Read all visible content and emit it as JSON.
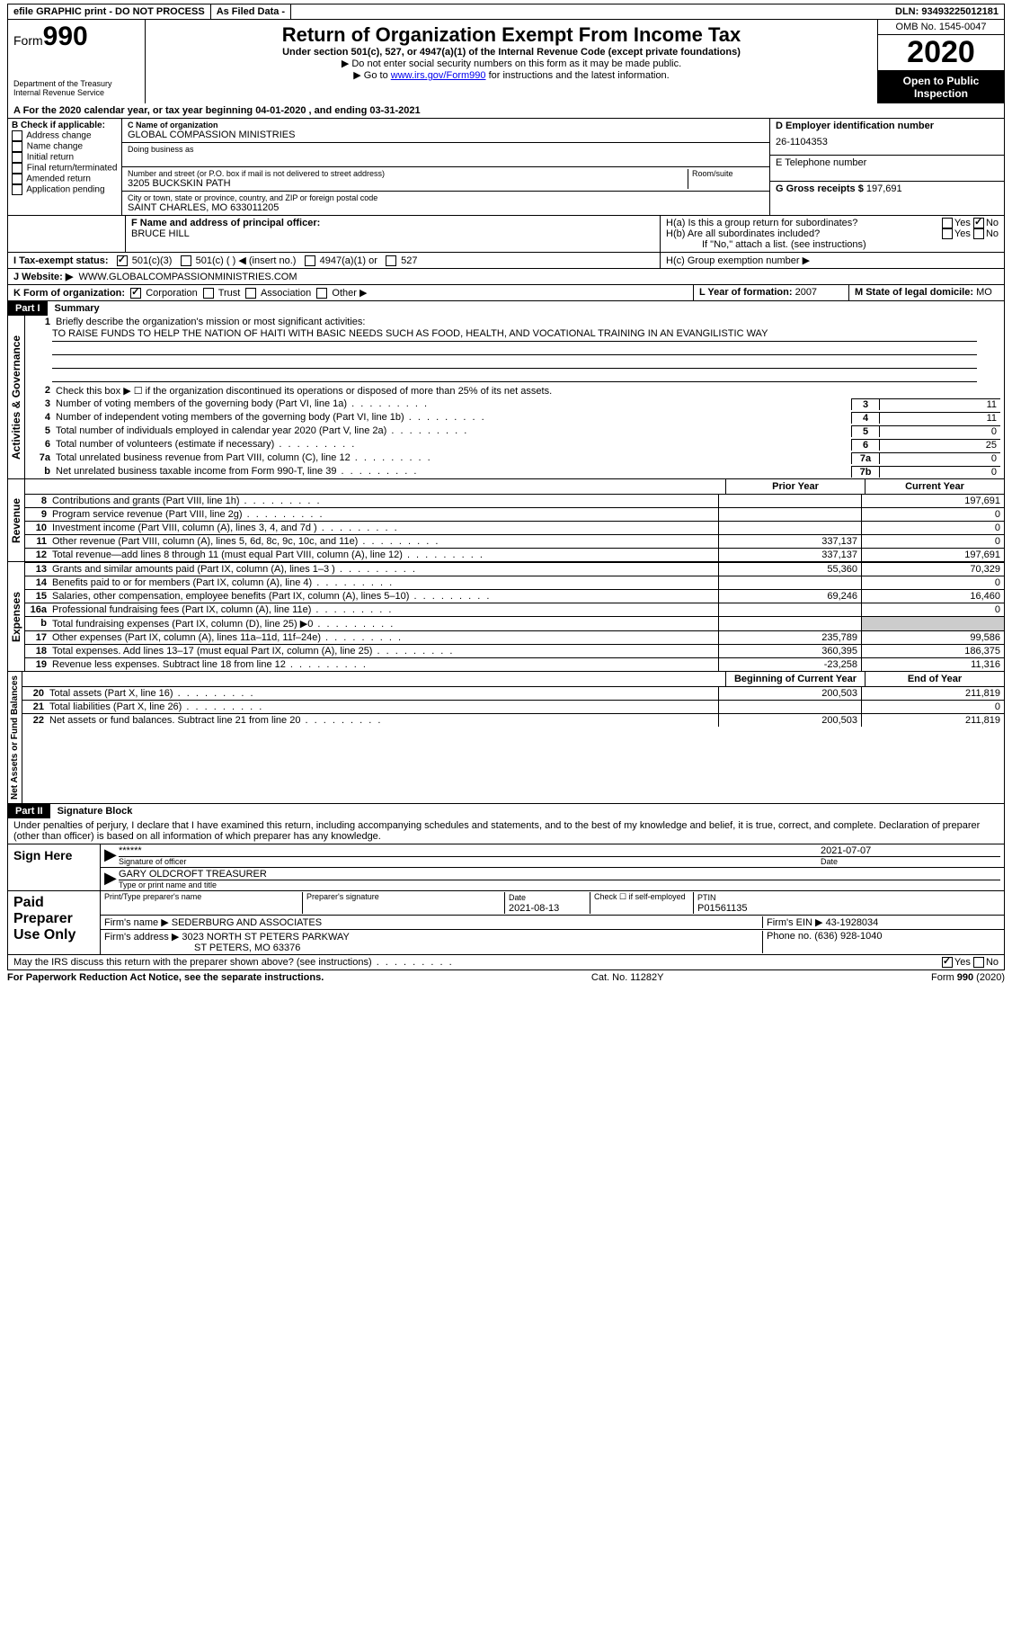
{
  "top": {
    "efile": "efile GRAPHIC print - DO NOT PROCESS",
    "asfiled": "As Filed Data -",
    "dln": "DLN: 93493225012181"
  },
  "header": {
    "form_prefix": "Form",
    "form_num": "990",
    "dept1": "Department of the Treasury",
    "dept2": "Internal Revenue Service",
    "title": "Return of Organization Exempt From Income Tax",
    "subtitle": "Under section 501(c), 527, or 4947(a)(1) of the Internal Revenue Code (except private foundations)",
    "note1": "▶ Do not enter social security numbers on this form as it may be made public.",
    "note2_pre": "▶ Go to ",
    "note2_link": "www.irs.gov/Form990",
    "note2_post": " for instructions and the latest information.",
    "omb": "OMB No. 1545-0047",
    "year": "2020",
    "open": "Open to Public Inspection"
  },
  "rowA": "A   For the 2020 calendar year, or tax year beginning 04-01-2020   , and ending 03-31-2021",
  "B": {
    "label": "B Check if applicable:",
    "items": [
      "Address change",
      "Name change",
      "Initial return",
      "Final return/terminated",
      "Amended return",
      "Application pending"
    ]
  },
  "C": {
    "label": "C Name of organization",
    "name": "GLOBAL COMPASSION MINISTRIES",
    "dba_label": "Doing business as",
    "addr_label": "Number and street (or P.O. box if mail is not delivered to street address)",
    "room_label": "Room/suite",
    "addr": "3205 BUCKSKIN PATH",
    "city_label": "City or town, state or province, country, and ZIP or foreign postal code",
    "city": "SAINT CHARLES, MO  633011205"
  },
  "D": {
    "label": "D Employer identification number",
    "val": "26-1104353"
  },
  "E": {
    "label": "E Telephone number"
  },
  "G": {
    "label": "G Gross receipts $",
    "val": "197,691"
  },
  "F": {
    "label": "F  Name and address of principal officer:",
    "name": "BRUCE HILL"
  },
  "H": {
    "a": "H(a)  Is this a group return for subordinates?",
    "b": "H(b)  Are all subordinates included?",
    "bnote": "If \"No,\" attach a list. (see instructions)",
    "c": "H(c)  Group exemption number ▶"
  },
  "I": {
    "label": "I   Tax-exempt status:",
    "o501c3": "501(c)(3)",
    "o501c": "501(c) (   ) ◀ (insert no.)",
    "o4947": "4947(a)(1) or",
    "o527": "527"
  },
  "J": {
    "label": "J   Website: ▶",
    "val": "WWW.GLOBALCOMPASSIONMINISTRIES.COM"
  },
  "K": {
    "label": "K Form of organization:",
    "corp": "Corporation",
    "trust": "Trust",
    "assoc": "Association",
    "other": "Other ▶"
  },
  "L": {
    "label": "L Year of formation:",
    "val": "2007"
  },
  "M": {
    "label": "M State of legal domicile:",
    "val": "MO"
  },
  "part1": {
    "num": "Part I",
    "title": "Summary"
  },
  "gov": {
    "label": "Activities & Governance",
    "l1": "Briefly describe the organization's mission or most significant activities:",
    "mission": "TO RAISE FUNDS TO HELP THE NATION OF HAITI WITH BASIC NEEDS SUCH AS FOOD, HEALTH, AND VOCATIONAL TRAINING IN AN EVANGILISTIC WAY",
    "l2": "Check this box ▶ ☐  if the organization discontinued its operations or disposed of more than 25% of its net assets.",
    "lines": [
      {
        "n": "3",
        "t": "Number of voting members of the governing body (Part VI, line 1a)",
        "box": "3",
        "v": "11"
      },
      {
        "n": "4",
        "t": "Number of independent voting members of the governing body (Part VI, line 1b)",
        "box": "4",
        "v": "11"
      },
      {
        "n": "5",
        "t": "Total number of individuals employed in calendar year 2020 (Part V, line 2a)",
        "box": "5",
        "v": "0"
      },
      {
        "n": "6",
        "t": "Total number of volunteers (estimate if necessary)",
        "box": "6",
        "v": "25"
      },
      {
        "n": "7a",
        "t": "Total unrelated business revenue from Part VIII, column (C), line 12",
        "box": "7a",
        "v": "0"
      },
      {
        "n": "b",
        "t": "Net unrelated business taxable income from Form 990-T, line 39",
        "box": "7b",
        "v": "0"
      }
    ]
  },
  "colhead": {
    "prior": "Prior Year",
    "curr": "Current Year"
  },
  "rev": {
    "label": "Revenue",
    "lines": [
      {
        "n": "8",
        "t": "Contributions and grants (Part VIII, line 1h)",
        "p": "",
        "c": "197,691"
      },
      {
        "n": "9",
        "t": "Program service revenue (Part VIII, line 2g)",
        "p": "",
        "c": "0"
      },
      {
        "n": "10",
        "t": "Investment income (Part VIII, column (A), lines 3, 4, and 7d )",
        "p": "",
        "c": "0"
      },
      {
        "n": "11",
        "t": "Other revenue (Part VIII, column (A), lines 5, 6d, 8c, 9c, 10c, and 11e)",
        "p": "337,137",
        "c": "0"
      },
      {
        "n": "12",
        "t": "Total revenue—add lines 8 through 11 (must equal Part VIII, column (A), line 12)",
        "p": "337,137",
        "c": "197,691"
      }
    ]
  },
  "exp": {
    "label": "Expenses",
    "lines": [
      {
        "n": "13",
        "t": "Grants and similar amounts paid (Part IX, column (A), lines 1–3 )",
        "p": "55,360",
        "c": "70,329"
      },
      {
        "n": "14",
        "t": "Benefits paid to or for members (Part IX, column (A), line 4)",
        "p": "",
        "c": "0"
      },
      {
        "n": "15",
        "t": "Salaries, other compensation, employee benefits (Part IX, column (A), lines 5–10)",
        "p": "69,246",
        "c": "16,460"
      },
      {
        "n": "16a",
        "t": "Professional fundraising fees (Part IX, column (A), line 11e)",
        "p": "",
        "c": "0"
      },
      {
        "n": "b",
        "t": "Total fundraising expenses (Part IX, column (D), line 25) ▶0",
        "p": "",
        "c": ""
      },
      {
        "n": "17",
        "t": "Other expenses (Part IX, column (A), lines 11a–11d, 11f–24e)",
        "p": "235,789",
        "c": "99,586"
      },
      {
        "n": "18",
        "t": "Total expenses. Add lines 13–17 (must equal Part IX, column (A), line 25)",
        "p": "360,395",
        "c": "186,375"
      },
      {
        "n": "19",
        "t": "Revenue less expenses. Subtract line 18 from line 12",
        "p": "-23,258",
        "c": "11,316"
      }
    ]
  },
  "na": {
    "label": "Net Assets or Fund Balances",
    "head_p": "Beginning of Current Year",
    "head_c": "End of Year",
    "lines": [
      {
        "n": "20",
        "t": "Total assets (Part X, line 16)",
        "p": "200,503",
        "c": "211,819"
      },
      {
        "n": "21",
        "t": "Total liabilities (Part X, line 26)",
        "p": "",
        "c": "0"
      },
      {
        "n": "22",
        "t": "Net assets or fund balances. Subtract line 21 from line 20",
        "p": "200,503",
        "c": "211,819"
      }
    ]
  },
  "part2": {
    "num": "Part II",
    "title": "Signature Block"
  },
  "perjury": "Under penalties of perjury, I declare that I have examined this return, including accompanying schedules and statements, and to the best of my knowledge and belief, it is true, correct, and complete. Declaration of preparer (other than officer) is based on all information of which preparer has any knowledge.",
  "sign": {
    "label": "Sign Here",
    "stars": "******",
    "sig_label": "Signature of officer",
    "date": "2021-07-07",
    "date_label": "Date",
    "name": "GARY OLDCROFT TREASURER",
    "name_label": "Type or print name and title"
  },
  "prep": {
    "label": "Paid Preparer Use Only",
    "h1": "Print/Type preparer's name",
    "h2": "Preparer's signature",
    "h3": "Date",
    "h4": "Check ☐ if self-employed",
    "h5": "PTIN",
    "date": "2021-08-13",
    "ptin": "P01561135",
    "firm_label": "Firm's name    ▶",
    "firm": "SEDERBURG AND ASSOCIATES",
    "ein_label": "Firm's EIN ▶",
    "ein": "43-1928034",
    "addr_label": "Firm's address ▶",
    "addr1": "3023 NORTH ST PETERS PARKWAY",
    "addr2": "ST PETERS, MO  63376",
    "phone_label": "Phone no.",
    "phone": "(636) 928-1040"
  },
  "discuss": "May the IRS discuss this return with the preparer shown above? (see instructions)",
  "footer": {
    "l": "For Paperwork Reduction Act Notice, see the separate instructions.",
    "m": "Cat. No. 11282Y",
    "r": "Form 990 (2020)"
  }
}
